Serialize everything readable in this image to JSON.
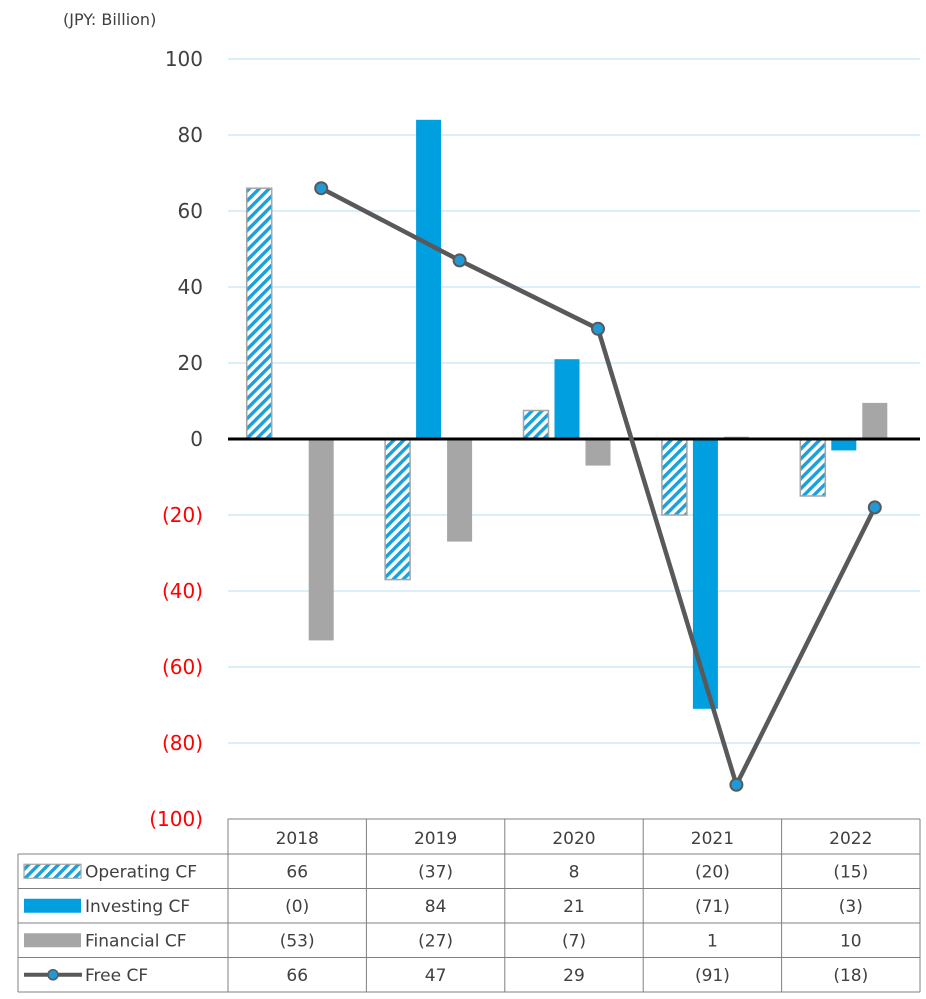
{
  "unit_label": "(JPY: Billion)",
  "colors": {
    "operating": "#1aa0dc",
    "investing": "#009fe0",
    "financial": "#a6a6a6",
    "free": "#595959",
    "free_marker": "#1f9ad6",
    "negative_tick": "#ff0000",
    "positive_tick": "#404040",
    "gridline": "#cdeaf7",
    "zero_line": "#000000",
    "table_border": "#808080"
  },
  "chart_data": {
    "type": "bar",
    "categories": [
      "2018",
      "2019",
      "2020",
      "2021",
      "2022"
    ],
    "ylim": [
      -100,
      100
    ],
    "y_ticks": [
      {
        "value": 100,
        "label": "100"
      },
      {
        "value": 80,
        "label": "80"
      },
      {
        "value": 60,
        "label": "60"
      },
      {
        "value": 40,
        "label": "40"
      },
      {
        "value": 20,
        "label": "20"
      },
      {
        "value": 0,
        "label": "0"
      },
      {
        "value": -20,
        "label": "(20)"
      },
      {
        "value": -40,
        "label": "(40)"
      },
      {
        "value": -60,
        "label": "(60)"
      },
      {
        "value": -80,
        "label": "(80)"
      },
      {
        "value": -100,
        "label": "(100)"
      }
    ],
    "grid": true,
    "series": [
      {
        "name": "Operating CF",
        "kind": "bar",
        "pattern": "hatched",
        "values": [
          66,
          -37,
          7.5,
          -20,
          -15
        ],
        "labels": [
          "66",
          "(37)",
          "8",
          "(20)",
          "(15)"
        ]
      },
      {
        "name": "Investing CF",
        "kind": "bar",
        "pattern": "solid",
        "values": [
          -0.2,
          84,
          21,
          -71,
          -3
        ],
        "labels": [
          "(0)",
          "84",
          "21",
          "(71)",
          "(3)"
        ]
      },
      {
        "name": "Financial CF",
        "kind": "bar",
        "pattern": "solid",
        "values": [
          -53,
          -27,
          -7,
          0.6,
          9.5
        ],
        "labels": [
          "(53)",
          "(27)",
          "(7)",
          "1",
          "10"
        ]
      },
      {
        "name": "Free CF",
        "kind": "line",
        "values": [
          66,
          47,
          29,
          -91,
          -18
        ],
        "labels": [
          "66",
          "47",
          "29",
          "(91)",
          "(18)"
        ]
      }
    ],
    "legend_position": "table-left"
  }
}
